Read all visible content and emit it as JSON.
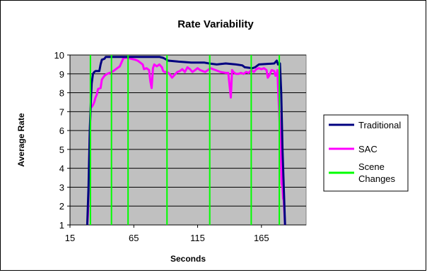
{
  "chart_data": {
    "type": "line",
    "title": "Rate Variability",
    "xlabel": "Seconds",
    "ylabel": "Average Rate",
    "xlim": [
      15,
      200
    ],
    "ylim": [
      1,
      10
    ],
    "x_ticks": [
      15,
      65,
      115,
      165
    ],
    "y_ticks": [
      1,
      2,
      3,
      4,
      5,
      6,
      7,
      8,
      9,
      10
    ],
    "grid": "horizontal",
    "plot_background": "#c0c0c0",
    "legend_position": "right",
    "series": [
      {
        "name": "Traditional",
        "color": "#000080",
        "points": [
          [
            28.5,
            1
          ],
          [
            29.5,
            3
          ],
          [
            30.5,
            6
          ],
          [
            31.5,
            7.8
          ],
          [
            32,
            8.5
          ],
          [
            33,
            9
          ],
          [
            34,
            9.1
          ],
          [
            35,
            9.15
          ],
          [
            38,
            9.15
          ],
          [
            39,
            9.5
          ],
          [
            40,
            9.75
          ],
          [
            42,
            9.8
          ],
          [
            43,
            9.9
          ],
          [
            60,
            9.9
          ],
          [
            70,
            9.9
          ],
          [
            80,
            9.9
          ],
          [
            85,
            9.9
          ],
          [
            88,
            9.85
          ],
          [
            92,
            9.7
          ],
          [
            100,
            9.65
          ],
          [
            110,
            9.6
          ],
          [
            120,
            9.6
          ],
          [
            124,
            9.55
          ],
          [
            130,
            9.5
          ],
          [
            137,
            9.55
          ],
          [
            145,
            9.5
          ],
          [
            150,
            9.45
          ],
          [
            152,
            9.35
          ],
          [
            158,
            9.3
          ],
          [
            160,
            9.35
          ],
          [
            163,
            9.5
          ],
          [
            175,
            9.55
          ],
          [
            177,
            9.7
          ],
          [
            178,
            9.5
          ],
          [
            179.5,
            9.55
          ],
          [
            180.5,
            8
          ],
          [
            181.5,
            5
          ],
          [
            182.5,
            3
          ],
          [
            183.5,
            1
          ]
        ]
      },
      {
        "name": "SAC",
        "color": "#ff00ff",
        "points": [
          [
            28.5,
            1
          ],
          [
            29,
            1.5
          ],
          [
            29.8,
            3
          ],
          [
            30.5,
            5.8
          ],
          [
            31.2,
            7.2
          ],
          [
            32,
            7.25
          ],
          [
            33,
            7.35
          ],
          [
            34,
            7.5
          ],
          [
            35,
            7.75
          ],
          [
            36,
            7.9
          ],
          [
            37,
            8.2
          ],
          [
            39,
            8.25
          ],
          [
            40,
            8.7
          ],
          [
            42,
            8.9
          ],
          [
            44,
            9.0
          ],
          [
            46,
            9.05
          ],
          [
            48,
            9.1
          ],
          [
            50,
            9.2
          ],
          [
            52,
            9.3
          ],
          [
            54,
            9.4
          ],
          [
            56,
            9.7
          ],
          [
            57,
            9.85
          ],
          [
            60,
            9.85
          ],
          [
            63,
            9.8
          ],
          [
            66,
            9.75
          ],
          [
            68,
            9.7
          ],
          [
            70,
            9.6
          ],
          [
            72,
            9.5
          ],
          [
            73,
            9.25
          ],
          [
            75,
            9.3
          ],
          [
            77,
            9.2
          ],
          [
            78,
            8.6
          ],
          [
            79,
            8.25
          ],
          [
            80,
            9.3
          ],
          [
            81,
            9.5
          ],
          [
            83,
            9.4
          ],
          [
            85,
            9.5
          ],
          [
            87,
            9.35
          ],
          [
            88,
            9.15
          ],
          [
            89,
            9.1
          ],
          [
            91,
            9.1
          ],
          [
            93,
            9.0
          ],
          [
            95,
            8.8
          ],
          [
            97,
            8.95
          ],
          [
            99,
            9.1
          ],
          [
            101,
            9.15
          ],
          [
            103,
            9.25
          ],
          [
            105,
            9.1
          ],
          [
            107,
            9.35
          ],
          [
            109,
            9.25
          ],
          [
            111,
            9.1
          ],
          [
            113,
            9.2
          ],
          [
            115,
            9.3
          ],
          [
            117,
            9.2
          ],
          [
            119,
            9.15
          ],
          [
            121,
            9.1
          ],
          [
            123,
            9.2
          ],
          [
            125,
            9.3
          ],
          [
            129,
            9.2
          ],
          [
            133,
            9.1
          ],
          [
            137,
            9.05
          ],
          [
            139,
            9.05
          ],
          [
            140,
            8.4
          ],
          [
            141,
            7.75
          ],
          [
            142,
            9.2
          ],
          [
            143,
            9.1
          ],
          [
            145,
            9.0
          ],
          [
            147,
            9.0
          ],
          [
            149,
            9.05
          ],
          [
            151,
            9.0
          ],
          [
            153,
            9.1
          ],
          [
            155,
            9.05
          ],
          [
            157,
            9.2
          ],
          [
            159,
            9.1
          ],
          [
            161,
            9.25
          ],
          [
            163,
            9.3
          ],
          [
            165,
            9.25
          ],
          [
            167,
            9.3
          ],
          [
            169,
            9.2
          ],
          [
            170,
            8.8
          ],
          [
            171,
            8.9
          ],
          [
            173,
            9.2
          ],
          [
            175,
            9.15
          ],
          [
            176,
            8.9
          ],
          [
            177,
            9.0
          ],
          [
            177.5,
            9.2
          ],
          [
            178,
            8.3
          ],
          [
            179,
            6.8
          ],
          [
            180,
            5.2
          ],
          [
            180.8,
            3.2
          ],
          [
            181.5,
            3.0
          ],
          [
            182,
            2.4
          ],
          [
            182.5,
            2.3
          ],
          [
            183.5,
            1
          ]
        ]
      },
      {
        "name": "Scene Changes",
        "color": "#00ff00",
        "vertical_lines_x": [
          31,
          47.5,
          60.5,
          91,
          124.5,
          157,
          179
        ]
      }
    ],
    "legend": [
      "Traditional",
      "SAC",
      "Scene\nChanges"
    ]
  }
}
